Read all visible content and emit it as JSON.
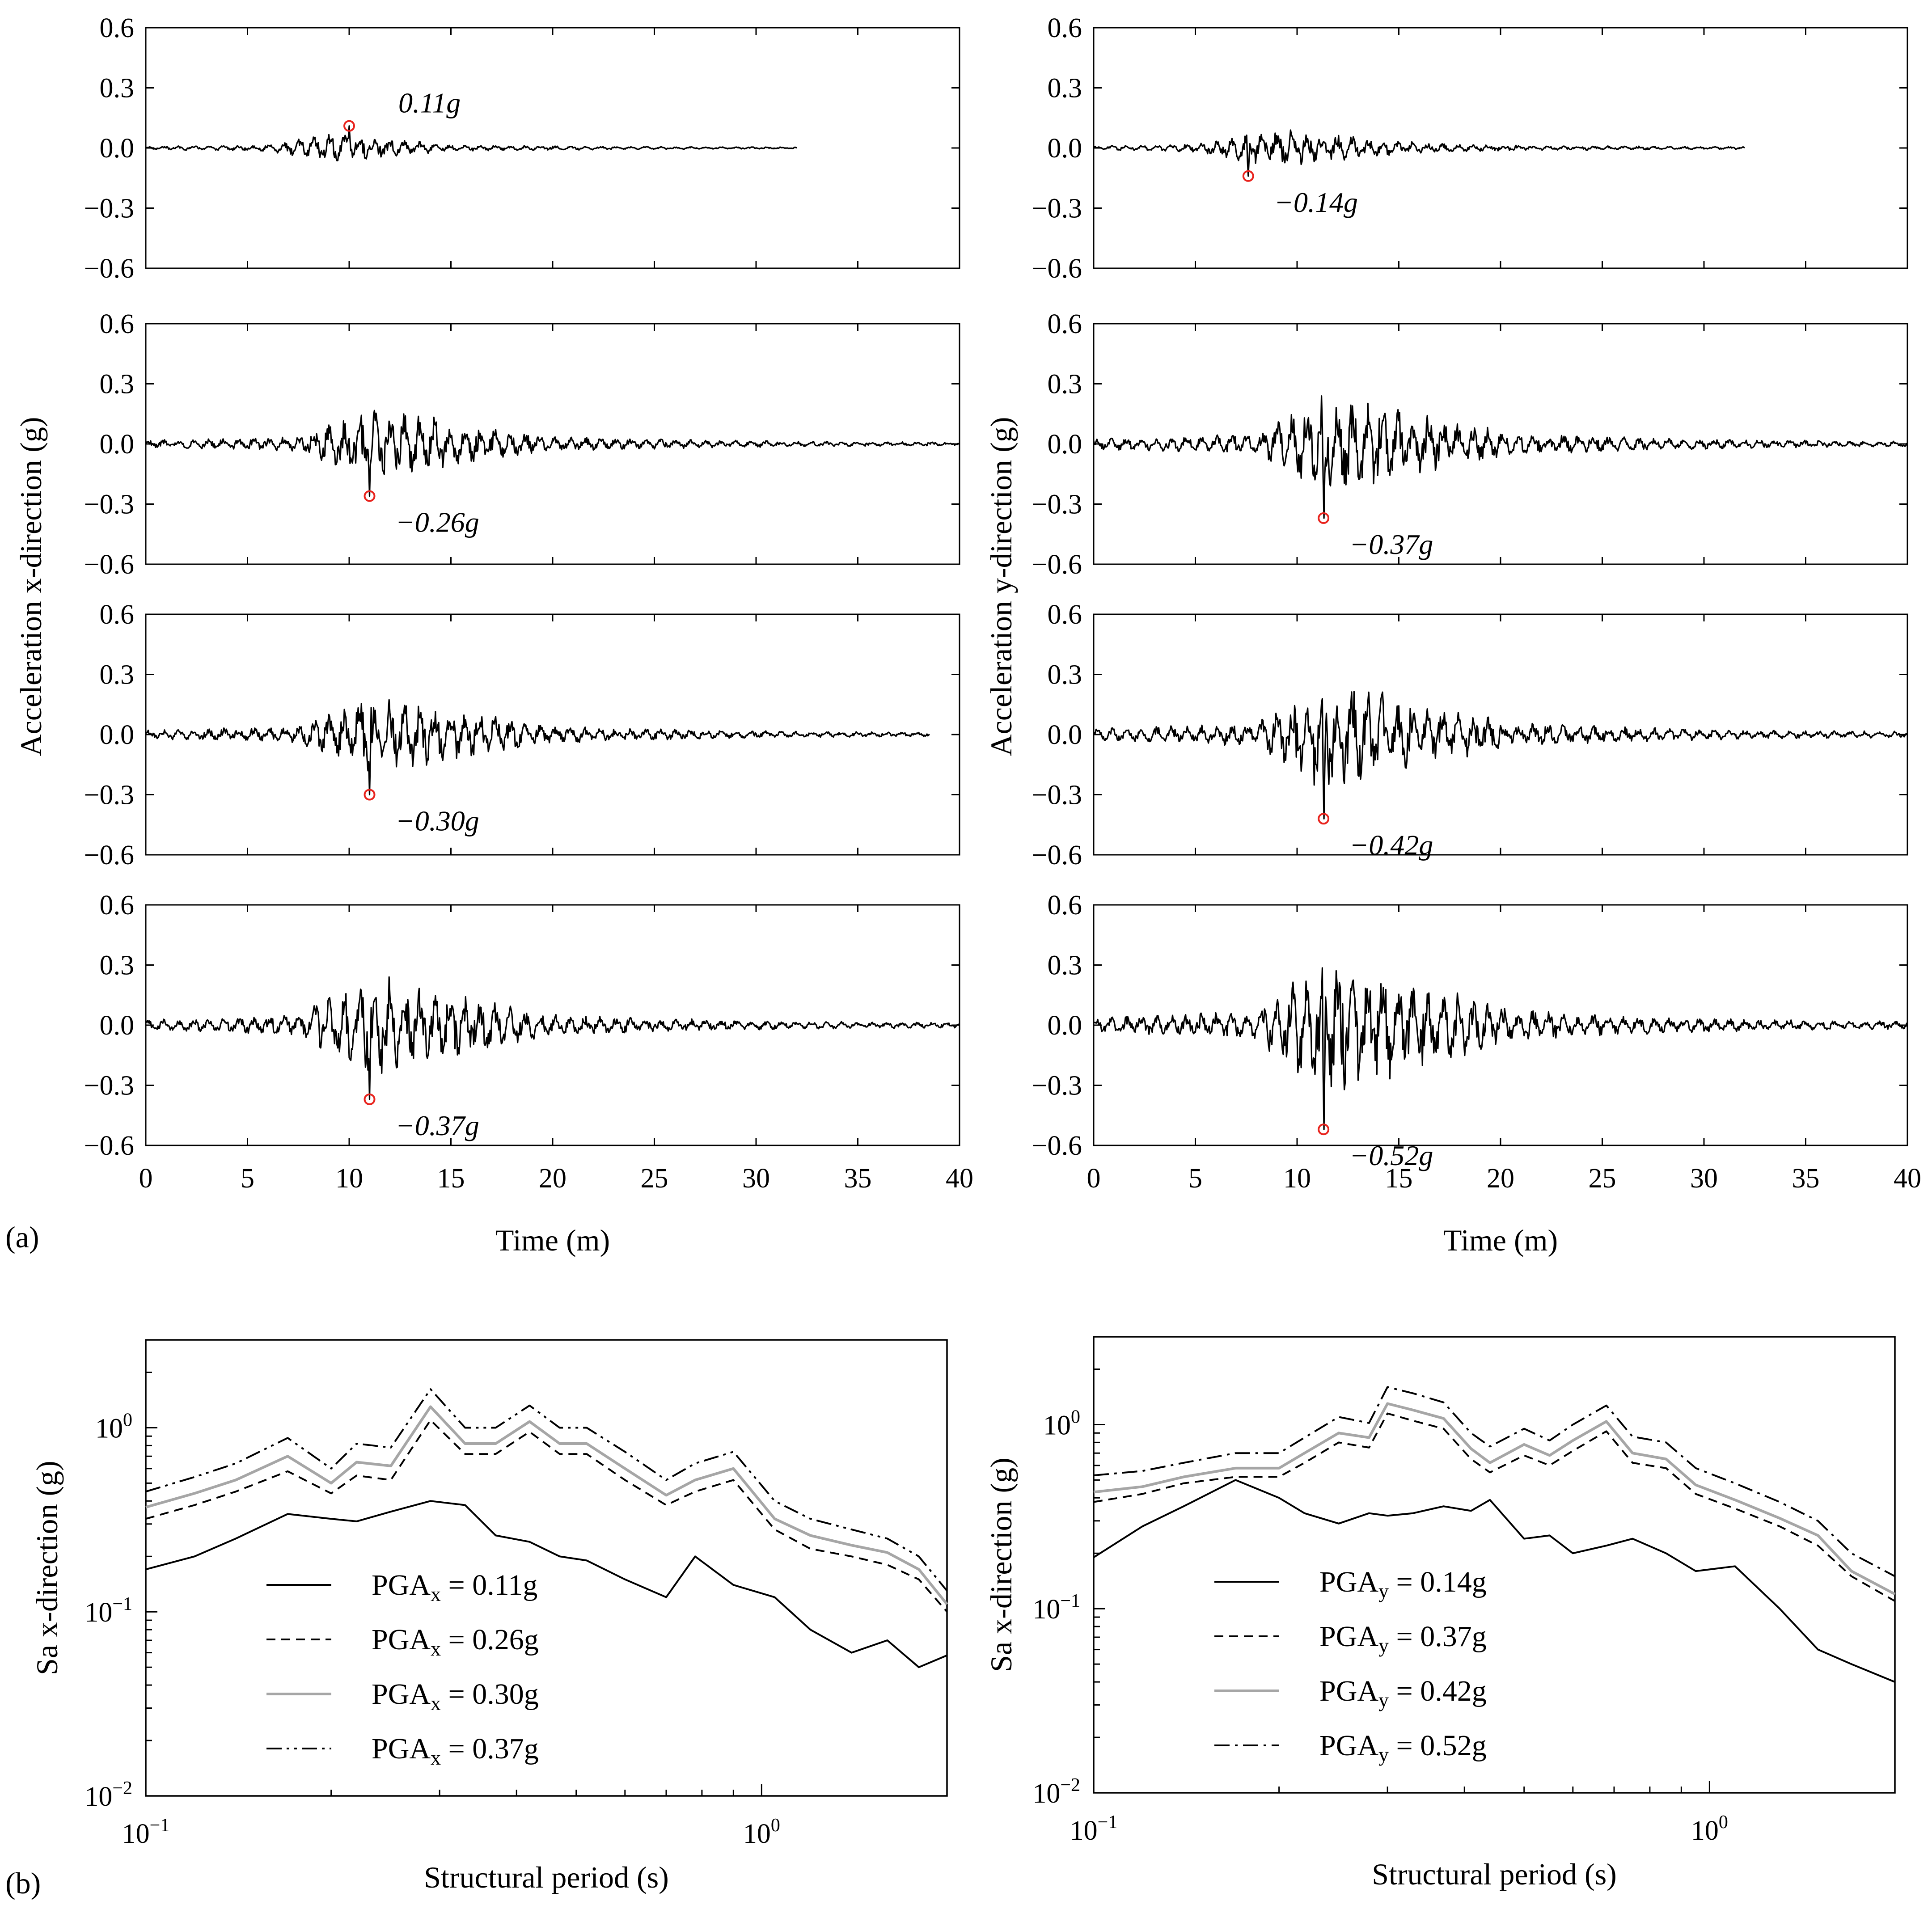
{
  "panel_labels": {
    "a": "(a)",
    "b": "(b)"
  },
  "colors": {
    "trace": "#000000",
    "peak_marker": "#e8231d",
    "gray_series": "#a6a6a6"
  },
  "chart_data": [
    {
      "id": "acc-x",
      "type": "line",
      "title": "",
      "ylabel": "Acceleration x-direction (g)",
      "xlabel": "Time (m)",
      "xlim": [
        0,
        40
      ],
      "xticks": [
        "0",
        "5",
        "10",
        "15",
        "20",
        "25",
        "30",
        "35",
        "40"
      ],
      "ylim": [
        -0.6,
        0.6
      ],
      "yticks": [
        "−0.6",
        "−0.3",
        "0.0",
        "0.3",
        "0.6"
      ],
      "records": [
        {
          "pga": 0.11,
          "peak_time": 10.0,
          "peak_value": 0.11,
          "label": "0.11g",
          "duration": 32,
          "strong_start": 6,
          "strong_center": 9.3,
          "strong_end": 15
        },
        {
          "pga": 0.26,
          "peak_time": 11.0,
          "peak_value": -0.26,
          "label": "−0.26g",
          "duration": 40,
          "strong_start": 7.5,
          "strong_center": 11.0,
          "strong_end": 20
        },
        {
          "pga": 0.3,
          "peak_time": 11.0,
          "peak_value": -0.3,
          "label": "−0.30g",
          "duration": 38.5,
          "strong_start": 7.5,
          "strong_center": 11.0,
          "strong_end": 20
        },
        {
          "pga": 0.37,
          "peak_time": 11.0,
          "peak_value": -0.37,
          "label": "−0.37g",
          "duration": 40,
          "strong_start": 7.5,
          "strong_center": 11.0,
          "strong_end": 20
        }
      ]
    },
    {
      "id": "acc-y",
      "type": "line",
      "title": "",
      "ylabel": "Acceleration y-direction (g)",
      "xlabel": "Time (m)",
      "xlim": [
        0,
        40
      ],
      "xticks": [
        "0",
        "5",
        "10",
        "15",
        "20",
        "25",
        "30",
        "35",
        "40"
      ],
      "ylim": [
        -0.6,
        0.6
      ],
      "yticks": [
        "−0.6",
        "−0.3",
        "0.0",
        "0.3",
        "0.6"
      ],
      "records": [
        {
          "pga": 0.14,
          "peak_time": 7.6,
          "peak_value": -0.14,
          "label": "−0.14g",
          "duration": 32,
          "strong_start": 5,
          "strong_center": 9.0,
          "strong_end": 17
        },
        {
          "pga": 0.37,
          "peak_time": 11.3,
          "peak_value": -0.37,
          "label": "−0.37g",
          "duration": 40,
          "strong_start": 8,
          "strong_center": 11.3,
          "strong_end": 21
        },
        {
          "pga": 0.42,
          "peak_time": 11.3,
          "peak_value": -0.42,
          "label": "−0.42g",
          "duration": 40,
          "strong_start": 8,
          "strong_center": 11.3,
          "strong_end": 21
        },
        {
          "pga": 0.52,
          "peak_time": 11.3,
          "peak_value": -0.52,
          "label": "−0.52g",
          "duration": 40,
          "strong_start": 8,
          "strong_center": 11.3,
          "strong_end": 21
        }
      ]
    },
    {
      "id": "sa-x",
      "type": "line",
      "scale": "log-log",
      "title": "",
      "ylabel": "Sa x-direction (g)",
      "xlabel": "Structural period (s)",
      "xlim": [
        0.1,
        2.0
      ],
      "ylim": [
        0.01,
        3.0
      ],
      "xtick_labels": [
        {
          "base": "10",
          "exp": "−1",
          "value": 0.1
        },
        {
          "base": "10",
          "exp": "0",
          "value": 1.0
        }
      ],
      "ytick_labels": [
        {
          "base": "10",
          "exp": "−2",
          "value": 0.01
        },
        {
          "base": "10",
          "exp": "−1",
          "value": 0.1
        },
        {
          "base": "10",
          "exp": "0",
          "value": 1.0
        }
      ],
      "legend_location": "bottom-left",
      "x": [
        0.1,
        0.12,
        0.14,
        0.17,
        0.2,
        0.22,
        0.25,
        0.29,
        0.33,
        0.37,
        0.42,
        0.47,
        0.52,
        0.6,
        0.7,
        0.78,
        0.9,
        1.05,
        1.2,
        1.4,
        1.6,
        1.8,
        2.0
      ],
      "series": [
        {
          "name": "PGAx = 0.11g",
          "label_main": "PGA",
          "label_sub": "x",
          "label_value": " = 0.11g",
          "style": "solid",
          "color": "#000000",
          "values": [
            0.17,
            0.2,
            0.25,
            0.34,
            0.32,
            0.31,
            0.35,
            0.4,
            0.38,
            0.26,
            0.24,
            0.2,
            0.19,
            0.15,
            0.12,
            0.2,
            0.14,
            0.12,
            0.08,
            0.06,
            0.07,
            0.05,
            0.058
          ]
        },
        {
          "name": "PGAx = 0.26g",
          "label_main": "PGA",
          "label_sub": "x",
          "label_value": " = 0.26g",
          "style": "dashed",
          "color": "#000000",
          "values": [
            0.32,
            0.38,
            0.45,
            0.58,
            0.44,
            0.55,
            0.52,
            1.1,
            0.72,
            0.72,
            0.95,
            0.72,
            0.72,
            0.52,
            0.38,
            0.45,
            0.52,
            0.28,
            0.22,
            0.2,
            0.18,
            0.15,
            0.1
          ]
        },
        {
          "name": "PGAx = 0.30g",
          "label_main": "PGA",
          "label_sub": "x",
          "label_value": " = 0.30g",
          "style": "solid",
          "color": "#a6a6a6",
          "values": [
            0.37,
            0.44,
            0.52,
            0.7,
            0.5,
            0.65,
            0.62,
            1.3,
            0.82,
            0.82,
            1.08,
            0.82,
            0.82,
            0.6,
            0.43,
            0.52,
            0.6,
            0.32,
            0.26,
            0.23,
            0.21,
            0.17,
            0.11
          ]
        },
        {
          "name": "PGAx = 0.37g",
          "label_main": "PGA",
          "label_sub": "x",
          "label_value": " = 0.37g",
          "style": "dashdotdot",
          "color": "#000000",
          "values": [
            0.45,
            0.54,
            0.64,
            0.88,
            0.6,
            0.82,
            0.78,
            1.62,
            1.0,
            1.0,
            1.32,
            1.0,
            1.0,
            0.74,
            0.52,
            0.64,
            0.74,
            0.4,
            0.32,
            0.28,
            0.25,
            0.2,
            0.13
          ]
        }
      ]
    },
    {
      "id": "sa-y",
      "type": "line",
      "scale": "log-log",
      "title": "",
      "ylabel": "Sa x-direction (g)",
      "xlabel": "Structural period (s)",
      "xlim": [
        0.1,
        2.0
      ],
      "ylim": [
        0.01,
        3.0
      ],
      "xtick_labels": [
        {
          "base": "10",
          "exp": "−1",
          "value": 0.1
        },
        {
          "base": "10",
          "exp": "0",
          "value": 1.0
        }
      ],
      "ytick_labels": [
        {
          "base": "10",
          "exp": "−2",
          "value": 0.01
        },
        {
          "base": "10",
          "exp": "−1",
          "value": 0.1
        },
        {
          "base": "10",
          "exp": "0",
          "value": 1.0
        }
      ],
      "legend_location": "bottom-left",
      "x": [
        0.1,
        0.12,
        0.14,
        0.17,
        0.2,
        0.22,
        0.25,
        0.28,
        0.3,
        0.33,
        0.37,
        0.41,
        0.44,
        0.5,
        0.55,
        0.6,
        0.68,
        0.75,
        0.85,
        0.95,
        1.1,
        1.3,
        1.5,
        1.7,
        2.0
      ],
      "series": [
        {
          "name": "PGAy = 0.14g",
          "label_main": "PGA",
          "label_sub": "y",
          "label_value": " = 0.14g",
          "style": "solid",
          "color": "#000000",
          "values": [
            0.19,
            0.28,
            0.36,
            0.5,
            0.4,
            0.33,
            0.29,
            0.33,
            0.32,
            0.33,
            0.36,
            0.34,
            0.39,
            0.24,
            0.25,
            0.2,
            0.22,
            0.24,
            0.2,
            0.16,
            0.17,
            0.1,
            0.06,
            0.05,
            0.04
          ]
        },
        {
          "name": "PGAy = 0.37g",
          "label_main": "PGA",
          "label_sub": "y",
          "label_value": " = 0.37g",
          "style": "dashed",
          "color": "#000000",
          "values": [
            0.38,
            0.42,
            0.48,
            0.52,
            0.52,
            0.62,
            0.8,
            0.75,
            1.15,
            1.05,
            0.95,
            0.65,
            0.55,
            0.68,
            0.6,
            0.72,
            0.92,
            0.62,
            0.58,
            0.42,
            0.35,
            0.28,
            0.22,
            0.15,
            0.11
          ]
        },
        {
          "name": "PGAy = 0.42g",
          "label_main": "PGA",
          "label_sub": "y",
          "label_value": " = 0.42g",
          "style": "solid",
          "color": "#a6a6a6",
          "values": [
            0.43,
            0.46,
            0.52,
            0.58,
            0.58,
            0.7,
            0.9,
            0.85,
            1.3,
            1.2,
            1.08,
            0.74,
            0.62,
            0.78,
            0.68,
            0.82,
            1.04,
            0.7,
            0.65,
            0.47,
            0.39,
            0.31,
            0.25,
            0.16,
            0.12
          ]
        },
        {
          "name": "PGAy = 0.52g",
          "label_main": "PGA",
          "label_sub": "y",
          "label_value": " = 0.52g",
          "style": "dashdot",
          "color": "#000000",
          "values": [
            0.53,
            0.56,
            0.62,
            0.7,
            0.7,
            0.85,
            1.1,
            1.02,
            1.6,
            1.48,
            1.32,
            0.9,
            0.76,
            0.95,
            0.82,
            1.0,
            1.27,
            0.86,
            0.8,
            0.58,
            0.48,
            0.38,
            0.3,
            0.2,
            0.15
          ]
        }
      ]
    }
  ]
}
